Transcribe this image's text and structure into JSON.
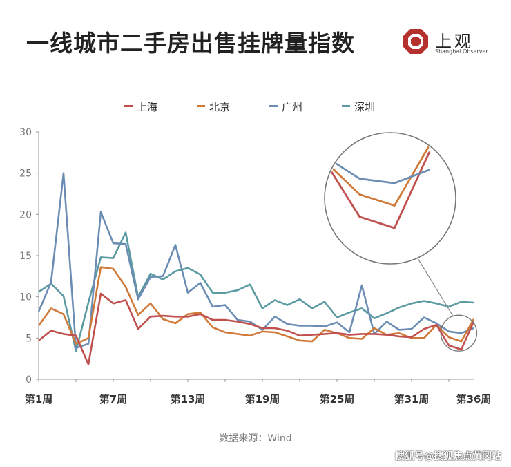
{
  "title": "一线城市二手房出售挂牌量指数",
  "brand": {
    "name": "上观",
    "subtitle": "Shanghai Observer",
    "color": "#b5312d"
  },
  "source": "数据来源：Wind",
  "watermark": "搜狐号@搜狐焦点黄冈站",
  "chart_data": {
    "type": "line",
    "ylim": [
      0,
      30
    ],
    "yticks": [
      0,
      5,
      10,
      15,
      20,
      25,
      30
    ],
    "xlim": [
      1,
      36
    ],
    "xticks": [
      {
        "value": 1,
        "label": "第1周"
      },
      {
        "value": 7,
        "label": "第7周"
      },
      {
        "value": 13,
        "label": "第13周"
      },
      {
        "value": 19,
        "label": "第19周"
      },
      {
        "value": 25,
        "label": "第25周"
      },
      {
        "value": 31,
        "label": "第31周"
      },
      {
        "value": 36,
        "label": "第36周"
      }
    ],
    "x": [
      1,
      2,
      3,
      4,
      5,
      6,
      7,
      8,
      9,
      10,
      11,
      12,
      13,
      14,
      15,
      16,
      17,
      18,
      19,
      20,
      21,
      22,
      23,
      24,
      25,
      26,
      27,
      28,
      29,
      30,
      31,
      32,
      33,
      34,
      35,
      36
    ],
    "grid": false,
    "legend_position": "top",
    "series": [
      {
        "name": "上海",
        "color": "#c0504d",
        "values": [
          4.7,
          5.9,
          5.5,
          5.3,
          1.8,
          10.4,
          9.2,
          9.6,
          6.1,
          7.6,
          7.7,
          7.6,
          7.6,
          7.9,
          7.2,
          7.2,
          7.0,
          6.7,
          6.2,
          6.2,
          5.9,
          5.3,
          5.4,
          5.5,
          5.6,
          5.4,
          5.5,
          5.5,
          5.4,
          5.2,
          5.1,
          6.1,
          6.6,
          4.1,
          3.6,
          7.0
        ]
      },
      {
        "name": "北京",
        "color": "#d07a3a",
        "values": [
          6.5,
          8.6,
          7.9,
          4.3,
          5.0,
          13.6,
          13.4,
          11.2,
          7.8,
          9.2,
          7.3,
          6.8,
          7.9,
          8.1,
          6.3,
          5.7,
          5.5,
          5.3,
          5.8,
          5.7,
          5.2,
          4.7,
          4.6,
          6.0,
          5.6,
          5.0,
          4.9,
          6.2,
          5.4,
          5.6,
          5.0,
          5.0,
          6.6,
          5.1,
          4.6,
          7.3
        ]
      },
      {
        "name": "广州",
        "color": "#6b8db4",
        "values": [
          8.2,
          11.8,
          25.0,
          3.8,
          4.3,
          20.3,
          16.5,
          16.4,
          9.7,
          12.4,
          12.5,
          16.3,
          10.5,
          11.7,
          8.8,
          9.0,
          7.2,
          7.0,
          6.0,
          7.6,
          6.7,
          6.5,
          6.5,
          6.4,
          6.9,
          5.7,
          11.4,
          5.5,
          7.0,
          6.0,
          6.1,
          7.5,
          6.8,
          5.8,
          5.6,
          6.2
        ]
      },
      {
        "name": "深圳",
        "color": "#5b9aa0",
        "values": [
          10.6,
          11.6,
          10.1,
          3.4,
          9.3,
          14.8,
          14.7,
          17.8,
          10.0,
          12.8,
          12.1,
          13.1,
          13.5,
          12.7,
          10.5,
          10.5,
          10.8,
          11.5,
          8.6,
          9.6,
          9.0,
          9.7,
          8.6,
          9.4,
          7.5,
          8.1,
          8.6,
          7.4,
          8.0,
          8.7,
          9.2,
          9.5,
          9.2,
          8.8,
          9.4,
          9.3
        ]
      }
    ]
  }
}
